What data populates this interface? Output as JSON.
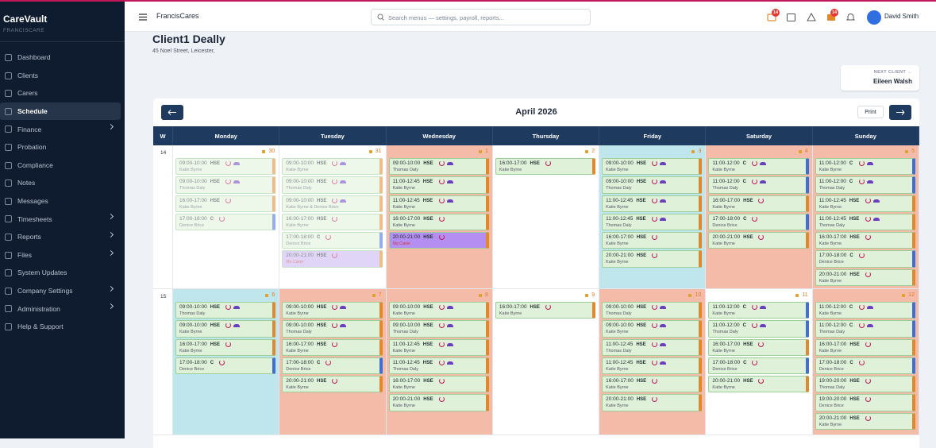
{
  "sidebar": {
    "brand": "CareVault",
    "org": "FRANCISCARE",
    "items": [
      {
        "label": "Dashboard"
      },
      {
        "label": "Clients"
      },
      {
        "label": "Carers"
      },
      {
        "label": "Schedule",
        "active": true
      },
      {
        "label": "Finance",
        "submenu": true
      },
      {
        "label": "Probation"
      },
      {
        "label": "Compliance"
      },
      {
        "label": "Notes"
      },
      {
        "label": "Messages"
      },
      {
        "label": "Timesheets",
        "submenu": true
      },
      {
        "label": "Reports",
        "submenu": true
      },
      {
        "label": "Files",
        "submenu": true
      },
      {
        "label": "System Updates"
      },
      {
        "label": "Company Settings",
        "submenu": true
      },
      {
        "label": "Administration",
        "submenu": true
      },
      {
        "label": "Help & Support"
      }
    ]
  },
  "topbar": {
    "org": "FrancisCares",
    "search_placeholder": "Search menus — settings, payroll, reports...",
    "alerts_count": 14,
    "tasks_count": 14,
    "user": "David Smith"
  },
  "header": {
    "client_name": "Client1 Deally",
    "address": "45 Noel Street, Leicester,"
  },
  "next_client": {
    "label": "NEXT CLIENT →",
    "name": "Eileen Walsh"
  },
  "calendar": {
    "month": "April 2026",
    "print": "Print",
    "week_label": "W",
    "day_names": [
      "Monday",
      "Tuesday",
      "Wednesday",
      "Thursday",
      "Friday",
      "Saturday",
      "Sunday"
    ],
    "weeks": [
      {
        "number": 14,
        "days": [
          {
            "date": 30,
            "past": true,
            "bg": "#ffffff",
            "shifts": [
              {
                "time": "09:00-10:00",
                "type": "HSE",
                "carer": "Katie Byrne"
              },
              {
                "time": "09:00-10:00",
                "type": "HSE",
                "carer": "Thomas Daly"
              },
              {
                "time": "16:00-17:00",
                "type": "HSE",
                "carer": "Katie Byrne"
              },
              {
                "time": "17:00-18:00",
                "type": "C",
                "carer": "Denice Brice"
              }
            ]
          },
          {
            "date": 31,
            "past": true,
            "bg": "#ffffff",
            "shifts": [
              {
                "time": "09:00-10:00",
                "type": "HSE",
                "carer": "Katie Byrne"
              },
              {
                "time": "09:00-10:00",
                "type": "HSE",
                "carer": "Thomas Daly"
              },
              {
                "time": "09:00-10:00",
                "type": "HSE",
                "carer": "Katie Byrne & Denice Brice"
              },
              {
                "time": "16:00-17:00",
                "type": "HSE",
                "carer": "Katie Byrne"
              },
              {
                "time": "17:00-18:00",
                "type": "C",
                "carer": "Denice Brice"
              },
              {
                "time": "20:00-21:00",
                "type": "HSE",
                "carer": "No Carer",
                "fill": "#c9b4f2"
              }
            ]
          },
          {
            "date": 1,
            "bg": "#f4bca8",
            "shifts": [
              {
                "time": "09:00-10:00",
                "type": "HSE",
                "carer": "Thomas Daly"
              },
              {
                "time": "11:00-12:45",
                "type": "HSE",
                "carer": "Katie Byrne"
              },
              {
                "time": "11:00-12:45",
                "type": "HSE",
                "carer": "Katie Byrne"
              },
              {
                "time": "16:00-17:00",
                "type": "HSE",
                "carer": "Katie Byrne"
              },
              {
                "time": "20:00-21:00",
                "type": "HSE",
                "carer": "No Carer",
                "fill": "#b48ef0"
              }
            ]
          },
          {
            "date": 2,
            "bg": "#ffffff",
            "shifts": [
              {
                "time": "16:00-17:00",
                "type": "HSE",
                "carer": "Katie Byrne"
              }
            ]
          },
          {
            "date": 3,
            "bg": "#bfe6ec",
            "shifts": [
              {
                "time": "09:00-10:00",
                "type": "HSE",
                "carer": "Katie Byrne"
              },
              {
                "time": "09:00-10:00",
                "type": "HSE",
                "carer": "Thomas Daly"
              },
              {
                "time": "11:00-12:45",
                "type": "HSE",
                "carer": "Katie Byrne"
              },
              {
                "time": "11:00-12:45",
                "type": "HSE",
                "carer": "Thomas Daly"
              },
              {
                "time": "16:00-17:00",
                "type": "HSE",
                "carer": "Katie Byrne"
              },
              {
                "time": "20:00-21:00",
                "type": "HSE",
                "carer": "Katie Byrne"
              }
            ]
          },
          {
            "date": 4,
            "bg": "#f4bca8",
            "shifts": [
              {
                "time": "11:00-12:00",
                "type": "C",
                "carer": "Katie Byrne"
              },
              {
                "time": "11:00-12:00",
                "type": "C",
                "carer": "Thomas Daly"
              },
              {
                "time": "16:00-17:00",
                "type": "HSE",
                "carer": "Katie Byrne"
              },
              {
                "time": "17:00-18:00",
                "type": "C",
                "carer": "Denice Brice"
              },
              {
                "time": "20:00-21:00",
                "type": "HSE",
                "carer": "Katie Byrne"
              }
            ]
          },
          {
            "date": 5,
            "bg": "#f4bca8",
            "shifts": [
              {
                "time": "11:00-12:00",
                "type": "C",
                "carer": "Katie Byrne"
              },
              {
                "time": "11:00-12:00",
                "type": "C",
                "carer": "Thomas Daly"
              },
              {
                "time": "11:00-12:45",
                "type": "HSE",
                "carer": "Katie Byrne"
              },
              {
                "time": "11:00-12:45",
                "type": "HSE",
                "carer": "Thomas Daly"
              },
              {
                "time": "16:00-17:00",
                "type": "HSE",
                "carer": "Katie Byrne"
              },
              {
                "time": "17:00-18:00",
                "type": "C",
                "carer": "Denice Brice"
              },
              {
                "time": "20:00-21:00",
                "type": "HSE",
                "carer": "Katie Byrne"
              }
            ]
          }
        ]
      },
      {
        "number": 15,
        "days": [
          {
            "date": 6,
            "bg": "#bfe6ec",
            "shifts": [
              {
                "time": "09:00-10:00",
                "type": "HSE",
                "carer": "Thomas Daly"
              },
              {
                "time": "09:00-10:00",
                "type": "HSE",
                "carer": "Katie Byrne"
              },
              {
                "time": "16:00-17:00",
                "type": "HSE",
                "carer": "Katie Byrne"
              },
              {
                "time": "17:00-18:00",
                "type": "C",
                "carer": "Denice Brice"
              }
            ]
          },
          {
            "date": 7,
            "bg": "#f4bca8",
            "shifts": [
              {
                "time": "09:00-10:00",
                "type": "HSE",
                "carer": "Katie Byrne"
              },
              {
                "time": "09:00-10:00",
                "type": "HSE",
                "carer": "Thomas Daly"
              },
              {
                "time": "16:00-17:00",
                "type": "HSE",
                "carer": "Katie Byrne"
              },
              {
                "time": "17:00-18:00",
                "type": "C",
                "carer": "Denice Brice"
              },
              {
                "time": "20:00-21:00",
                "type": "HSE",
                "carer": "Katie Byrne"
              }
            ]
          },
          {
            "date": 8,
            "bg": "#f4bca8",
            "shifts": [
              {
                "time": "09:00-10:00",
                "type": "HSE",
                "carer": "Katie Byrne"
              },
              {
                "time": "09:00-10:00",
                "type": "HSE",
                "carer": "Thomas Daly"
              },
              {
                "time": "11:00-12:45",
                "type": "HSE",
                "carer": "Katie Byrne"
              },
              {
                "time": "11:00-12:45",
                "type": "HSE",
                "carer": "Thomas Daly"
              },
              {
                "time": "16:00-17:00",
                "type": "HSE",
                "carer": "Katie Byrne"
              },
              {
                "time": "20:00-21:00",
                "type": "HSE",
                "carer": "Katie Byrne"
              }
            ]
          },
          {
            "date": 9,
            "bg": "#ffffff",
            "shifts": [
              {
                "time": "16:00-17:00",
                "type": "HSE",
                "carer": "Katie Byrne"
              }
            ]
          },
          {
            "date": 10,
            "bg": "#f4bca8",
            "shifts": [
              {
                "time": "09:00-10:00",
                "type": "HSE",
                "carer": "Thomas Daly"
              },
              {
                "time": "09:00-10:00",
                "type": "HSE",
                "carer": "Katie Byrne"
              },
              {
                "time": "11:00-12:45",
                "type": "HSE",
                "carer": "Thomas Daly"
              },
              {
                "time": "11:00-12:45",
                "type": "HSE",
                "carer": "Katie Byrne"
              },
              {
                "time": "16:00-17:00",
                "type": "HSE",
                "carer": "Katie Byrne"
              },
              {
                "time": "20:00-21:00",
                "type": "HSE",
                "carer": "Katie Byrne"
              }
            ]
          },
          {
            "date": 11,
            "bg": "#ffffff",
            "shifts": [
              {
                "time": "11:00-12:00",
                "type": "C",
                "carer": "Katie Byrne"
              },
              {
                "time": "11:00-12:00",
                "type": "C",
                "carer": "Thomas Daly"
              },
              {
                "time": "16:00-17:00",
                "type": "HSE",
                "carer": "Katie Byrne"
              },
              {
                "time": "17:00-18:00",
                "type": "C",
                "carer": "Denice Brice"
              },
              {
                "time": "20:00-21:00",
                "type": "HSE",
                "carer": "Katie Byrne"
              }
            ]
          },
          {
            "date": 12,
            "bg": "#f4bca8",
            "shifts": [
              {
                "time": "11:00-12:00",
                "type": "C",
                "carer": "Katie Byrne"
              },
              {
                "time": "11:00-12:00",
                "type": "C",
                "carer": "Thomas Daly"
              },
              {
                "time": "16:00-17:00",
                "type": "HSE",
                "carer": "Katie Byrne"
              },
              {
                "time": "17:00-18:00",
                "type": "C",
                "carer": "Denice Brice"
              },
              {
                "time": "19:00-20:00",
                "type": "HSE",
                "carer": "Thomas Daly"
              },
              {
                "time": "19:00-20:00",
                "type": "HSE",
                "carer": "Denice Brice"
              },
              {
                "time": "20:00-21:00",
                "type": "HSE",
                "carer": "Katie Byrne"
              }
            ]
          }
        ]
      }
    ]
  }
}
